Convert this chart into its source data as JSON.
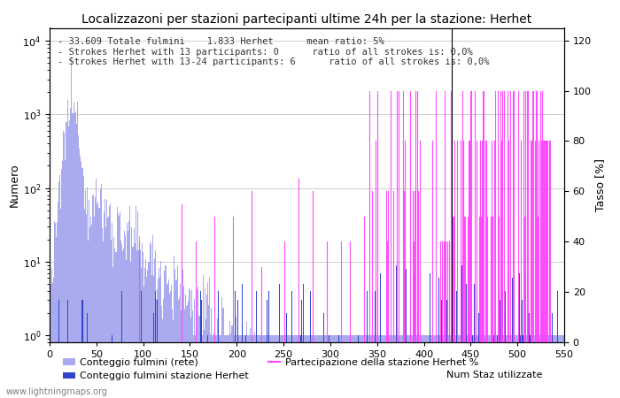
{
  "title": "Localizzazoni per stazioni partecipanti ultime 24h per la stazione: Herhet",
  "ylabel_left": "Numero",
  "ylabel_right": "Tasso [%]",
  "xlim": [
    0,
    550
  ],
  "ylim_left": [
    0.8,
    15000
  ],
  "ylim_right": [
    0,
    125
  ],
  "yticks_right": [
    0,
    20,
    40,
    60,
    80,
    100,
    120
  ],
  "annotation_lines": [
    "33.609 Totale fulmini    1.833 Herhet      mean ratio: 5%",
    "Strokes Herhet with 13 participants: 0      ratio of all strokes is: 0,0%",
    "Strokes Herhet with 13-24 participants: 6      ratio of all strokes is: 0,0%"
  ],
  "legend_light_blue": "Conteggio fulmini (rete)",
  "legend_dark_blue": "Conteggio fulmini stazione Herhet",
  "legend_right_label": "Num Staz utilizzate",
  "legend_magenta": "Partecipazione della stazione Herhet %",
  "color_light_blue": "#aaaaee",
  "color_dark_blue": "#3344cc",
  "color_magenta": "#ff44ff",
  "color_background": "#ffffff",
  "watermark": "www.lightningmaps.org",
  "title_fontsize": 10,
  "annotation_fontsize": 7.5,
  "grid_color": "#bbbbbb",
  "xticks": [
    0,
    50,
    100,
    150,
    200,
    250,
    300,
    350,
    400,
    450,
    500,
    550
  ],
  "vline_x": 430,
  "seed": 12345,
  "n": 550
}
